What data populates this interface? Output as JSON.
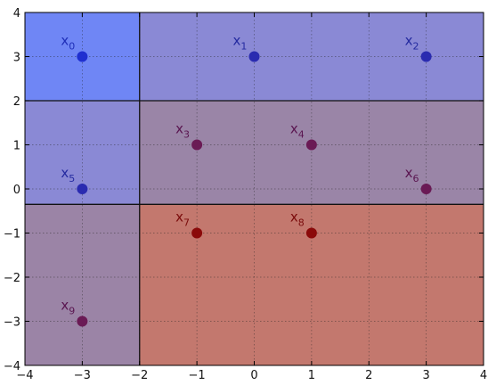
{
  "chart_data": {
    "type": "scatter",
    "title": "",
    "xlabel": "",
    "ylabel": "",
    "xlim": [
      -4,
      4
    ],
    "ylim": [
      -4,
      4
    ],
    "x_ticks": [
      -4,
      -3,
      -2,
      -1,
      0,
      1,
      2,
      3,
      4
    ],
    "y_ticks": [
      -4,
      -3,
      -2,
      -1,
      0,
      1,
      2,
      3,
      4
    ],
    "x_tick_labels": [
      "−4",
      "−3",
      "−2",
      "−1",
      "0",
      "1",
      "2",
      "3",
      "4"
    ],
    "y_tick_labels": [
      "−4",
      "−3",
      "−2",
      "−1",
      "0",
      "1",
      "2",
      "3",
      "4"
    ],
    "grid": true,
    "regions": [
      {
        "x": [
          -4,
          -2
        ],
        "y": [
          2,
          4
        ],
        "color": "#6f86f5"
      },
      {
        "x": [
          -2,
          4
        ],
        "y": [
          2,
          4
        ],
        "color": "#8a89d5"
      },
      {
        "x": [
          -4,
          -2
        ],
        "y": [
          -0.35,
          2
        ],
        "color": "#8a89d5"
      },
      {
        "x": [
          -2,
          4
        ],
        "y": [
          -0.35,
          2
        ],
        "color": "#9a85a7"
      },
      {
        "x": [
          -4,
          -2
        ],
        "y": [
          -4,
          -0.35
        ],
        "color": "#9b84a6"
      },
      {
        "x": [
          -2,
          4
        ],
        "y": [
          -4,
          -0.35
        ],
        "color": "#c3786e"
      }
    ],
    "points": [
      {
        "label": "x",
        "sub": "0",
        "x": -3,
        "y": 3,
        "color": "#1f2fd0",
        "label_color": "#1f2fb8"
      },
      {
        "label": "x",
        "sub": "1",
        "x": 0,
        "y": 3,
        "color": "#2a2bb0",
        "label_color": "#242aa0"
      },
      {
        "label": "x",
        "sub": "2",
        "x": 3,
        "y": 3,
        "color": "#2a2bb0",
        "label_color": "#242aa0"
      },
      {
        "label": "x",
        "sub": "3",
        "x": -1,
        "y": 1,
        "color": "#6a1a55",
        "label_color": "#5a1550"
      },
      {
        "label": "x",
        "sub": "4",
        "x": 1,
        "y": 1,
        "color": "#6a1a55",
        "label_color": "#5a1550"
      },
      {
        "label": "x",
        "sub": "5",
        "x": -3,
        "y": 0,
        "color": "#2a2bb0",
        "label_color": "#242aa0"
      },
      {
        "label": "x",
        "sub": "6",
        "x": 3,
        "y": 0,
        "color": "#6a1a55",
        "label_color": "#5a1550"
      },
      {
        "label": "x",
        "sub": "7",
        "x": -1,
        "y": -1,
        "color": "#8b0a0a",
        "label_color": "#7a0b0b"
      },
      {
        "label": "x",
        "sub": "8",
        "x": 1,
        "y": -1,
        "color": "#8b0a0a",
        "label_color": "#7a0b0b"
      },
      {
        "label": "x",
        "sub": "9",
        "x": -3,
        "y": -3,
        "color": "#6a1a55",
        "label_color": "#5a1550"
      }
    ],
    "boundaries": [
      {
        "x1": -2,
        "y1": -4,
        "x2": -2,
        "y2": 4
      },
      {
        "x1": -4,
        "y1": 2,
        "x2": 4,
        "y2": 2
      },
      {
        "x1": -4,
        "y1": -0.35,
        "x2": 4,
        "y2": -0.35
      }
    ]
  }
}
